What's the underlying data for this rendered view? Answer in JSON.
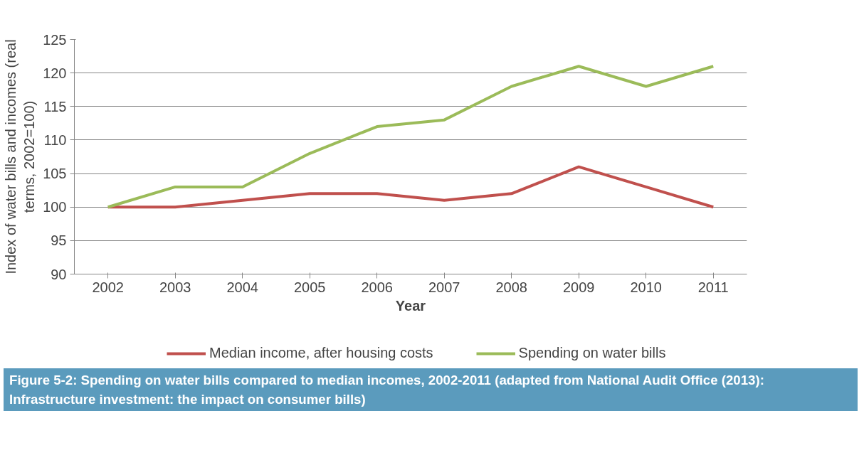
{
  "chart_data": {
    "type": "line",
    "xlabel": "Year",
    "ylabel": "Index of water bills and incomes (real terms, 2002=100)",
    "categories": [
      "2002",
      "2003",
      "2004",
      "2005",
      "2006",
      "2007",
      "2008",
      "2009",
      "2010",
      "2011"
    ],
    "series": [
      {
        "name": "Median income, after housing costs",
        "color": "#c0504d",
        "values": [
          100,
          100,
          101,
          102,
          102,
          101,
          102,
          106,
          103,
          100
        ]
      },
      {
        "name": "Spending on water bills",
        "color": "#9bbb59",
        "values": [
          100,
          103,
          103,
          108,
          112,
          113,
          118,
          121,
          118,
          121
        ]
      }
    ],
    "ylim": [
      90,
      125
    ],
    "yticks": [
      90,
      95,
      100,
      105,
      110,
      115,
      120,
      125
    ],
    "grid": "y",
    "legend": "bottom",
    "marker": "none",
    "line_style": "solid",
    "annotations": [
      "Figure 5-2: Spending on water bills compared to median incomes, 2002-2011 (adapted from National Audit Office (2013):  Infrastructure investment: the impact on consumer bills)"
    ]
  }
}
